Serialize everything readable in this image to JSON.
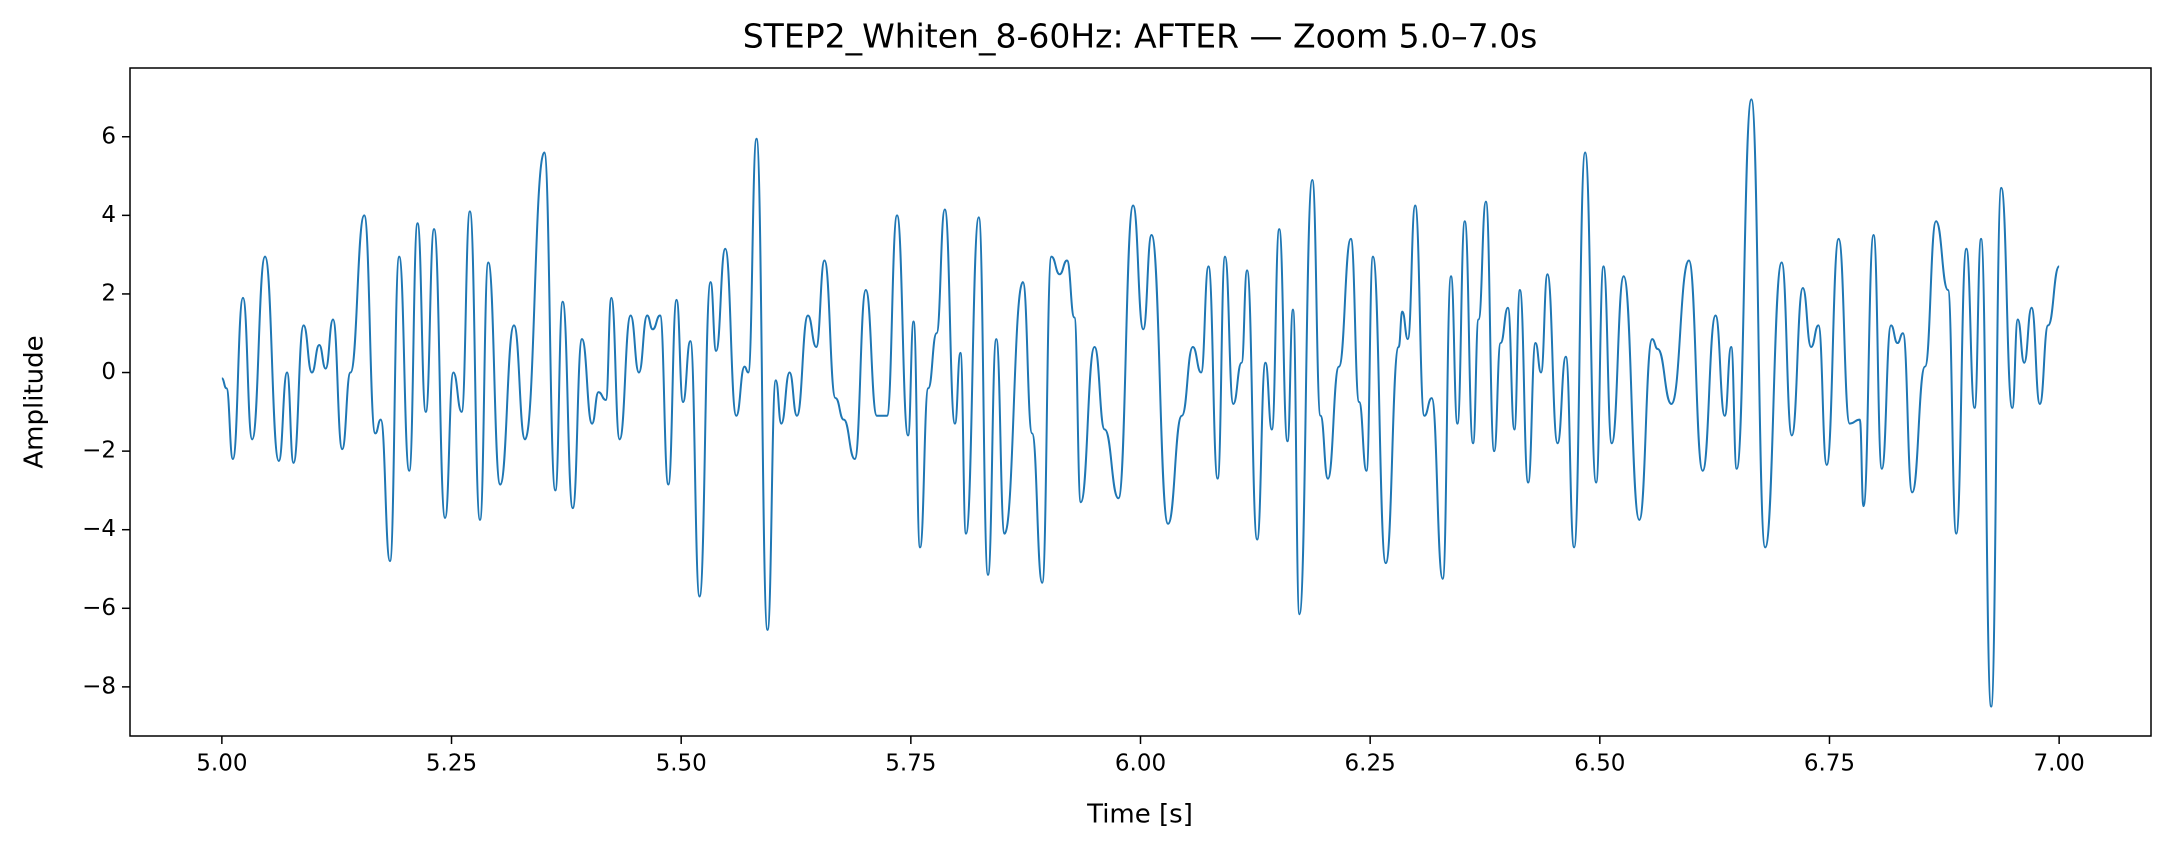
{
  "chart_data": {
    "type": "line",
    "title": "STEP2_Whiten_8-60Hz: AFTER — Zoom 5.0–7.0s",
    "x_label": "Time [s]",
    "y_label": "Amplitude",
    "xlim": [
      4.9,
      7.1
    ],
    "ylim": [
      -9.25,
      7.75
    ],
    "xticks": [
      {
        "value": 5,
        "label": "5.00"
      },
      {
        "value": 5.25,
        "label": "5.25"
      },
      {
        "value": 5.5,
        "label": "5.50"
      },
      {
        "value": 5.75,
        "label": "5.75"
      },
      {
        "value": 6,
        "label": "6.00"
      },
      {
        "value": 6.25,
        "label": "6.25"
      },
      {
        "value": 6.5,
        "label": "6.50"
      },
      {
        "value": 6.75,
        "label": "6.75"
      },
      {
        "value": 7,
        "label": "7.00"
      }
    ],
    "yticks": [
      {
        "value": -8,
        "label": "−8"
      },
      {
        "value": -6,
        "label": "−6"
      },
      {
        "value": -4,
        "label": "−4"
      },
      {
        "value": -2,
        "label": "−2"
      },
      0,
      2,
      4,
      6
    ],
    "grid": false,
    "x": [
      5.0,
      5.005,
      5.012,
      5.023,
      5.033,
      5.047,
      5.062,
      5.071,
      5.078,
      5.089,
      5.098,
      5.106,
      5.113,
      5.121,
      5.131,
      5.14,
      5.155,
      5.167,
      5.173,
      5.183,
      5.193,
      5.204,
      5.213,
      5.222,
      5.231,
      5.243,
      5.252,
      5.261,
      5.27,
      5.281,
      5.29,
      5.303,
      5.318,
      5.33,
      5.351,
      5.363,
      5.371,
      5.382,
      5.392,
      5.403,
      5.41,
      5.418,
      5.424,
      5.433,
      5.445,
      5.454,
      5.463,
      5.469,
      5.477,
      5.486,
      5.495,
      5.502,
      5.51,
      5.52,
      5.532,
      5.538,
      5.548,
      5.56,
      5.569,
      5.573,
      5.582,
      5.594,
      5.603,
      5.609,
      5.618,
      5.626,
      5.638,
      5.647,
      5.656,
      5.668,
      5.677,
      5.689,
      5.701,
      5.713,
      5.724,
      5.735,
      5.747,
      5.753,
      5.76,
      5.769,
      5.778,
      5.787,
      5.798,
      5.804,
      5.81,
      5.824,
      5.834,
      5.843,
      5.852,
      5.872,
      5.882,
      5.893,
      5.903,
      5.912,
      5.92,
      5.928,
      5.935,
      5.95,
      5.961,
      5.976,
      5.992,
      6.003,
      6.012,
      6.03,
      6.045,
      6.057,
      6.066,
      6.074,
      6.084,
      6.092,
      6.101,
      6.11,
      6.116,
      6.127,
      6.136,
      6.143,
      6.151,
      6.16,
      6.166,
      6.173,
      6.187,
      6.196,
      6.204,
      6.216,
      6.229,
      6.238,
      6.246,
      6.253,
      6.267,
      6.281,
      6.285,
      6.291,
      6.299,
      6.309,
      6.317,
      6.329,
      6.338,
      6.345,
      6.353,
      6.362,
      6.368,
      6.376,
      6.385,
      6.392,
      6.4,
      6.407,
      6.413,
      6.422,
      6.43,
      6.436,
      6.443,
      6.454,
      6.463,
      6.472,
      6.484,
      6.496,
      6.504,
      6.513,
      6.526,
      6.543,
      6.557,
      6.563,
      6.578,
      6.597,
      6.612,
      6.626,
      6.636,
      6.643,
      6.649,
      6.665,
      6.68,
      6.698,
      6.709,
      6.721,
      6.73,
      6.738,
      6.747,
      6.76,
      6.772,
      6.783,
      6.787,
      6.798,
      6.807,
      6.817,
      6.824,
      6.83,
      6.84,
      6.854,
      6.866,
      6.879,
      6.888,
      6.899,
      6.908,
      6.915,
      6.926,
      6.937,
      6.949,
      6.955,
      6.962,
      6.97,
      6.979,
      6.988,
      7.0
    ],
    "series": [
      {
        "color": "#1f77b4",
        "values": [
          -0.15,
          -0.4,
          -2.2,
          1.9,
          -1.7,
          2.95,
          -2.25,
          0,
          -2.3,
          1.2,
          0,
          0.7,
          0.1,
          1.35,
          -1.95,
          0,
          4.0,
          -1.55,
          -1.2,
          -4.8,
          2.95,
          -2.5,
          3.8,
          -1.0,
          3.65,
          -3.7,
          0,
          -1.0,
          4.1,
          -3.75,
          2.8,
          -2.85,
          1.2,
          -1.7,
          5.6,
          -3.0,
          1.8,
          -3.45,
          0.85,
          -1.3,
          -0.5,
          -0.7,
          1.9,
          -1.7,
          1.45,
          0,
          1.45,
          1.1,
          1.45,
          -2.85,
          1.85,
          -0.75,
          0.8,
          -5.7,
          2.3,
          0.55,
          3.15,
          -1.1,
          0.15,
          0,
          5.95,
          -6.55,
          -0.2,
          -1.3,
          0,
          -1.1,
          1.45,
          0.65,
          2.85,
          -0.65,
          -1.2,
          -2.2,
          2.1,
          -1.1,
          -1.1,
          4.0,
          -1.6,
          1.3,
          -4.45,
          -0.4,
          1.0,
          4.15,
          -1.3,
          0.5,
          -4.1,
          3.95,
          -5.15,
          0.85,
          -4.1,
          2.3,
          -1.55,
          -5.35,
          2.95,
          2.5,
          2.85,
          1.4,
          -3.3,
          0.65,
          -1.45,
          -3.2,
          4.25,
          1.1,
          3.5,
          -3.85,
          -1.1,
          0.65,
          0,
          2.7,
          -2.7,
          2.95,
          -0.8,
          0.25,
          2.6,
          -4.25,
          0.25,
          -1.45,
          3.65,
          -1.75,
          1.6,
          -6.15,
          4.9,
          -1.1,
          -2.7,
          0.15,
          3.4,
          -0.75,
          -2.5,
          2.95,
          -4.85,
          0.65,
          1.55,
          0.85,
          4.25,
          -1.1,
          -0.65,
          -5.25,
          2.45,
          -1.3,
          3.85,
          -1.8,
          1.35,
          4.35,
          -2.0,
          0.75,
          1.65,
          -1.45,
          2.1,
          -2.8,
          0.75,
          0,
          2.5,
          -1.8,
          0.4,
          -4.45,
          5.6,
          -2.8,
          2.7,
          -1.8,
          2.45,
          -3.75,
          0.85,
          0.6,
          -0.8,
          2.85,
          -2.5,
          1.45,
          -1.1,
          0.65,
          -2.45,
          6.95,
          -4.45,
          2.8,
          -1.6,
          2.15,
          0.65,
          1.2,
          -2.35,
          3.4,
          -1.3,
          -1.2,
          -3.4,
          3.5,
          -2.45,
          1.2,
          0.75,
          1.0,
          -3.05,
          0.15,
          3.85,
          2.1,
          -4.1,
          3.15,
          -0.9,
          3.4,
          -8.5,
          4.7,
          -0.9,
          1.35,
          0.25,
          1.65,
          -0.8,
          1.2,
          2.7
        ]
      }
    ]
  }
}
